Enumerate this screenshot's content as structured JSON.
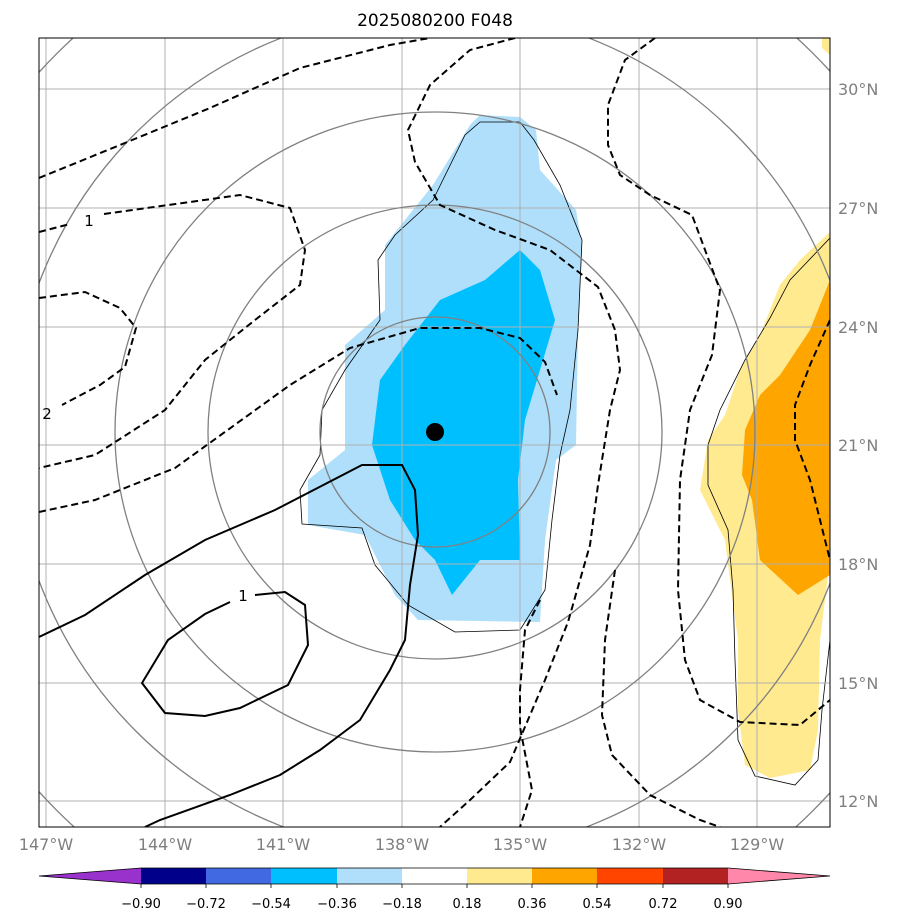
{
  "title": "2025080200 F048",
  "colors": {
    "light_blue": "#afdffa",
    "deep_sky_blue": "#00bfff",
    "light_yellow": "#ffea8f",
    "orange": "#ffa500",
    "contour": "#000000",
    "ring": "#808080",
    "grid": "#b0b0b0"
  },
  "chart_data": {
    "type": "map",
    "title": "2025080200 F048",
    "lon_ticks": [
      "147°W",
      "144°W",
      "141°W",
      "138°W",
      "135°W",
      "132°W",
      "129°W"
    ],
    "lat_ticks": [
      "30°N",
      "27°N",
      "24°N",
      "21°N",
      "18°N",
      "15°N",
      "12°N"
    ],
    "storm_center": {
      "lon": -137.4,
      "lat": 21.3
    },
    "contour_labels": [
      "1",
      "2",
      "1"
    ],
    "colorbar": {
      "ticks": [
        "−0.90",
        "−0.72",
        "−0.54",
        "−0.36",
        "−0.18",
        "0.18",
        "0.36",
        "0.54",
        "0.72",
        "0.90"
      ],
      "colors": [
        "#9932cc",
        "#00008b",
        "#4169e1",
        "#00bfff",
        "#afdffa",
        "#ffffff",
        "#ffea8f",
        "#ffa500",
        "#ff4500",
        "#b22222",
        "#ff88aa"
      ]
    }
  }
}
